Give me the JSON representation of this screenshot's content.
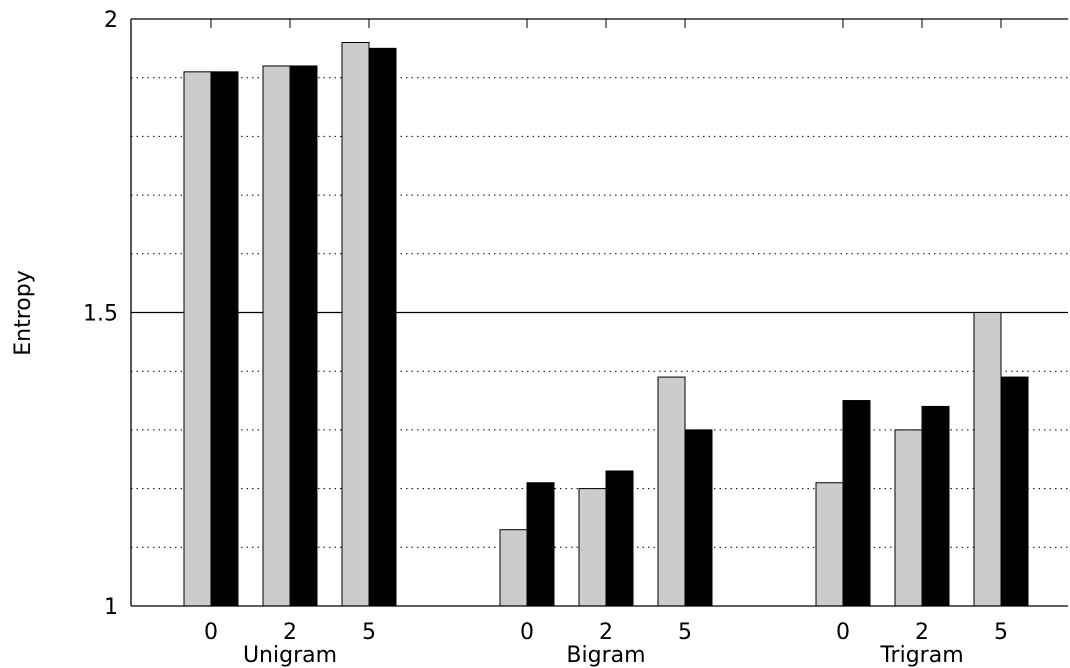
{
  "chart_data": {
    "type": "bar",
    "title": "",
    "xlabel": "",
    "ylabel": "Entropy",
    "ylim": [
      1,
      2
    ],
    "y_ticks": [
      "1",
      "1.5",
      "2"
    ],
    "grid": {
      "major_y": true,
      "minor_y_dotted": true
    },
    "groups": [
      {
        "name": "Unigram",
        "categories": [
          "0",
          "2",
          "5"
        ]
      },
      {
        "name": "Bigram",
        "categories": [
          "0",
          "2",
          "5"
        ]
      },
      {
        "name": "Trigram",
        "categories": [
          "0",
          "2",
          "5"
        ]
      }
    ],
    "series": [
      {
        "color": "#cccccc",
        "values": [
          1.91,
          1.92,
          1.96,
          1.13,
          1.2,
          1.39,
          1.21,
          1.3,
          1.5
        ]
      },
      {
        "color": "#000000",
        "values": [
          1.91,
          1.92,
          1.95,
          1.21,
          1.23,
          1.3,
          1.35,
          1.34,
          1.39
        ]
      }
    ]
  }
}
